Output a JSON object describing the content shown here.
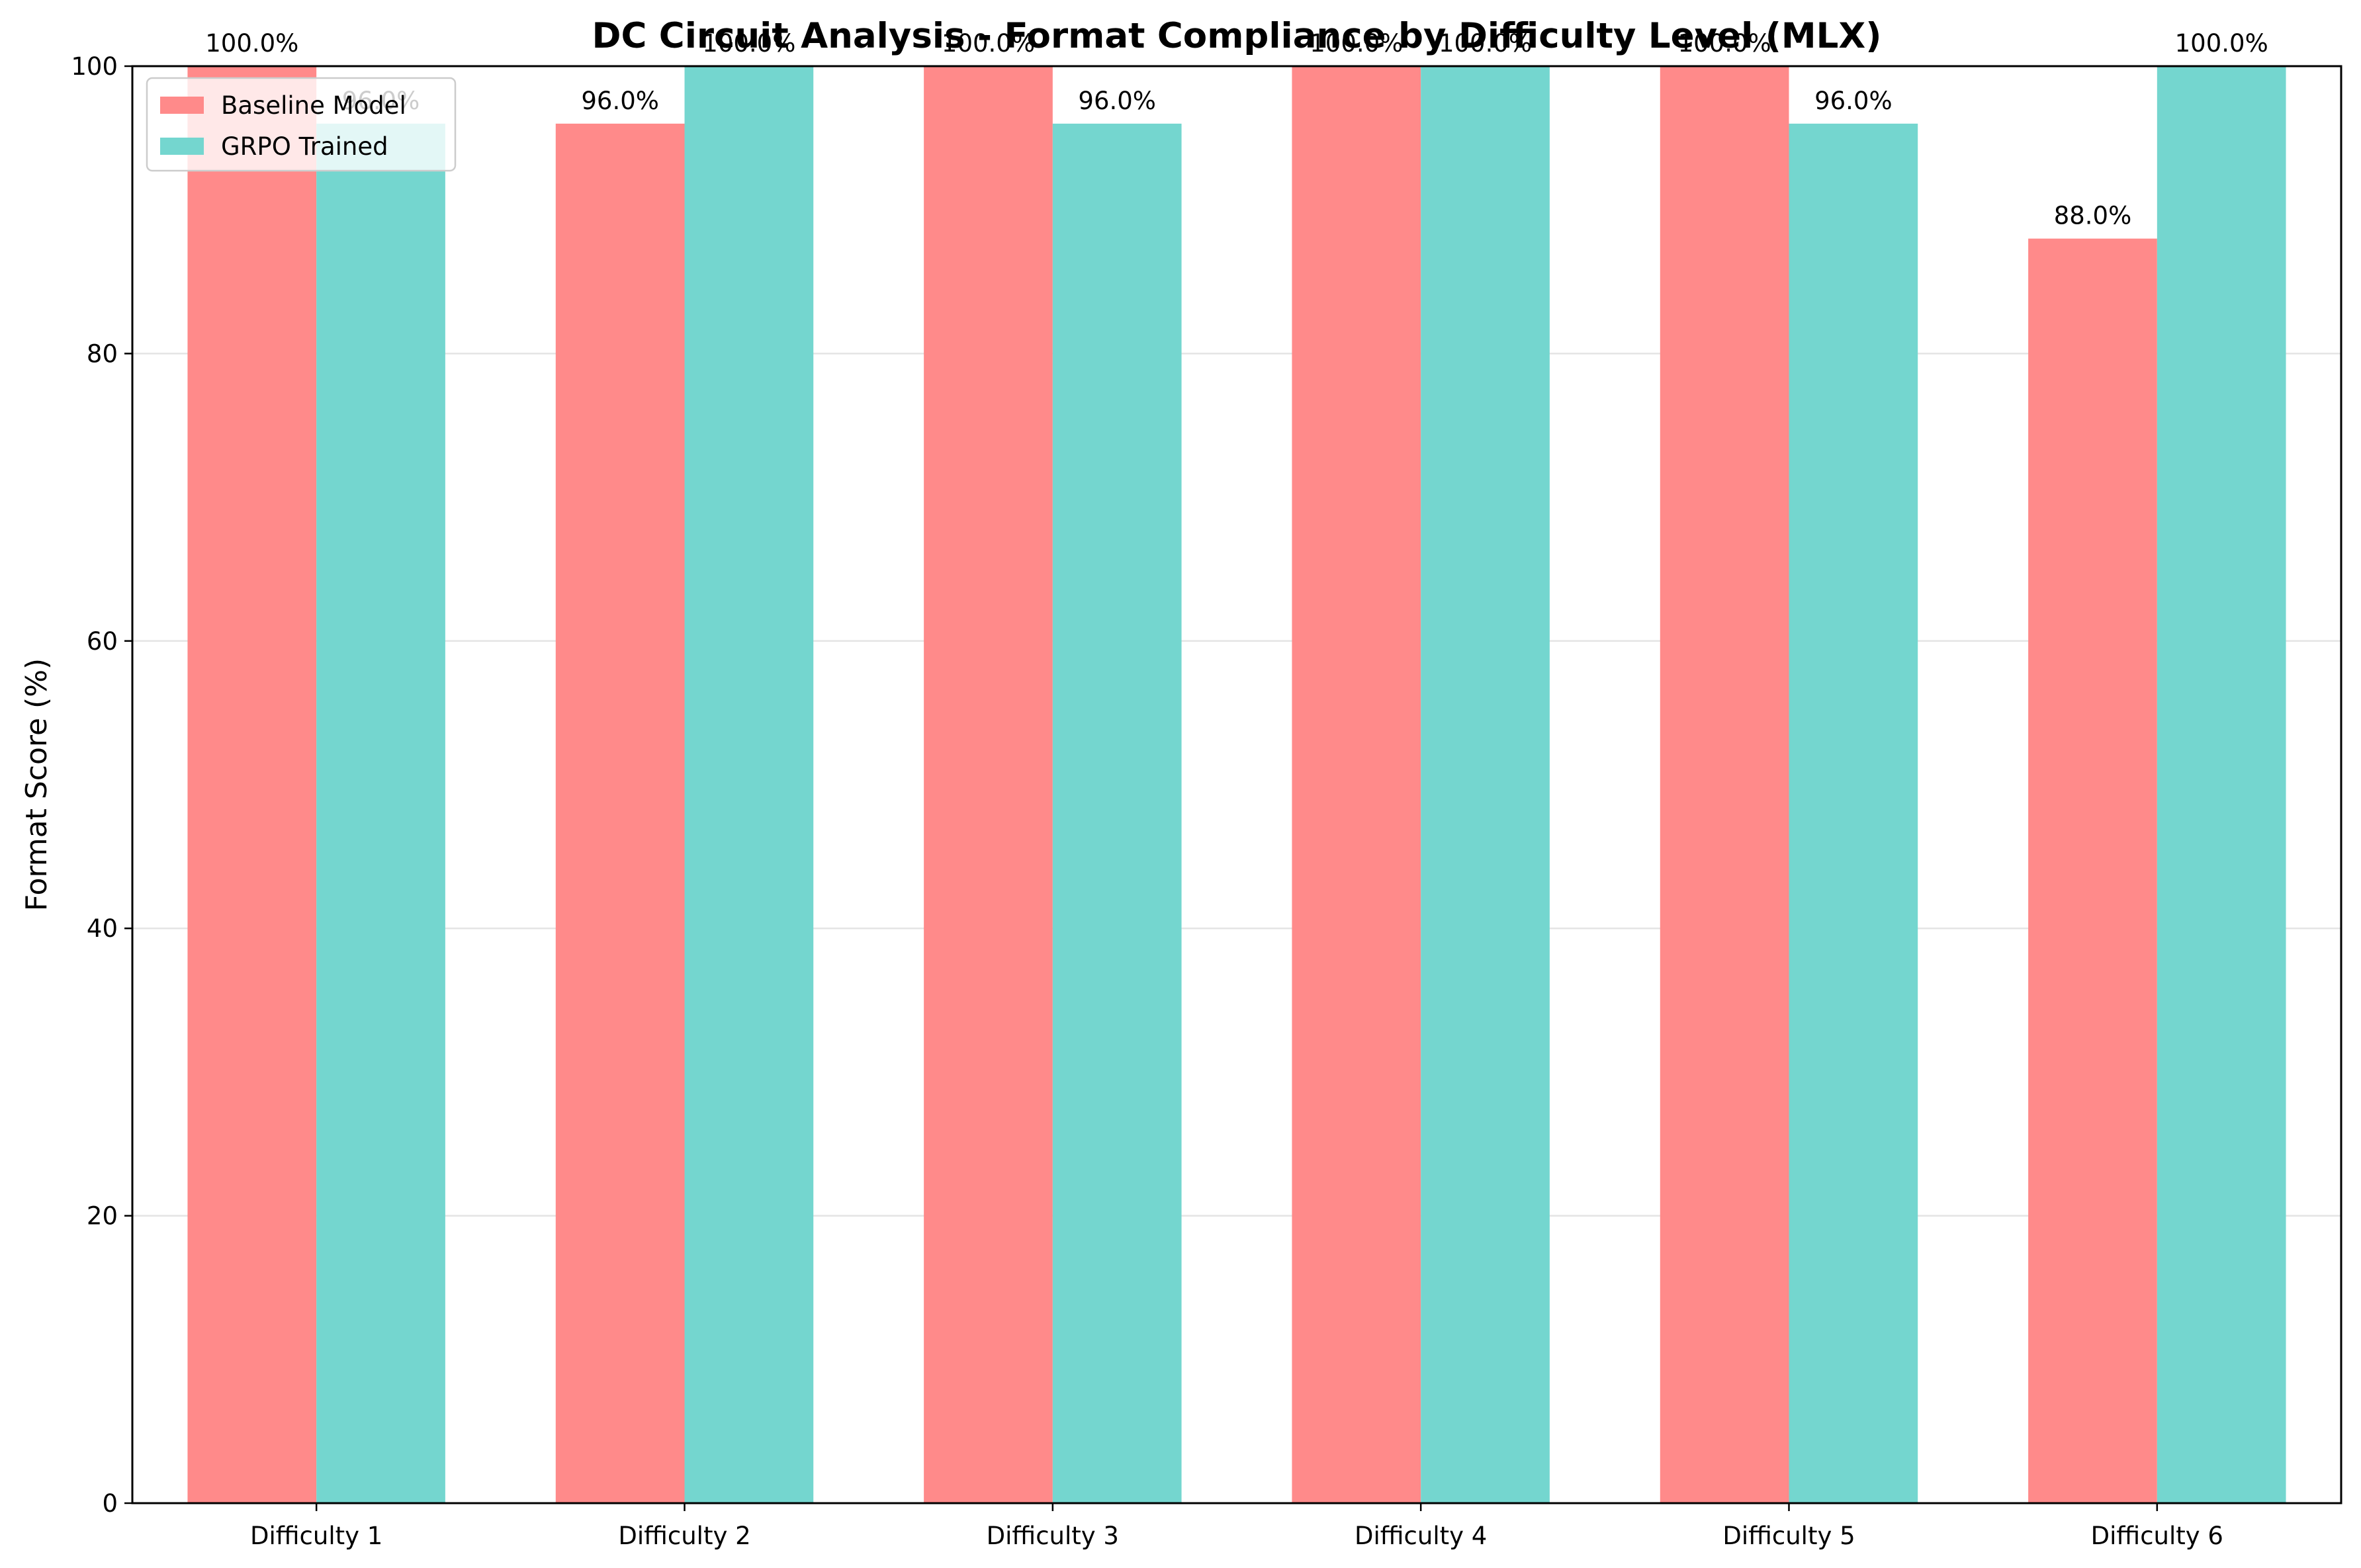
{
  "chart_data": {
    "type": "bar",
    "title": "DC Circuit Analysis - Format Compliance by Difficulty Level (MLX)",
    "xlabel": "",
    "ylabel": "Format Score (%)",
    "ylim": [
      0,
      100
    ],
    "yticks": [
      0,
      20,
      40,
      60,
      80,
      100
    ],
    "grid": "y",
    "legend_position": "top-left",
    "categories": [
      "Difficulty 1",
      "Difficulty 2",
      "Difficulty 3",
      "Difficulty 4",
      "Difficulty 5",
      "Difficulty 6"
    ],
    "series": [
      {
        "name": "Baseline Model",
        "color": "#ff8a8a",
        "values": [
          100.0,
          96.0,
          100.0,
          100.0,
          100.0,
          88.0
        ],
        "labels": [
          "100.0%",
          "96.0%",
          "100.0%",
          "100.0%",
          "100.0%",
          "88.0%"
        ]
      },
      {
        "name": "GRPO Trained",
        "color": "#74d6cf",
        "values": [
          96.0,
          100.0,
          96.0,
          100.0,
          96.0,
          100.0
        ],
        "labels": [
          "96.0%",
          "100.0%",
          "96.0%",
          "100.0%",
          "96.0%",
          "100.0%"
        ]
      }
    ]
  }
}
